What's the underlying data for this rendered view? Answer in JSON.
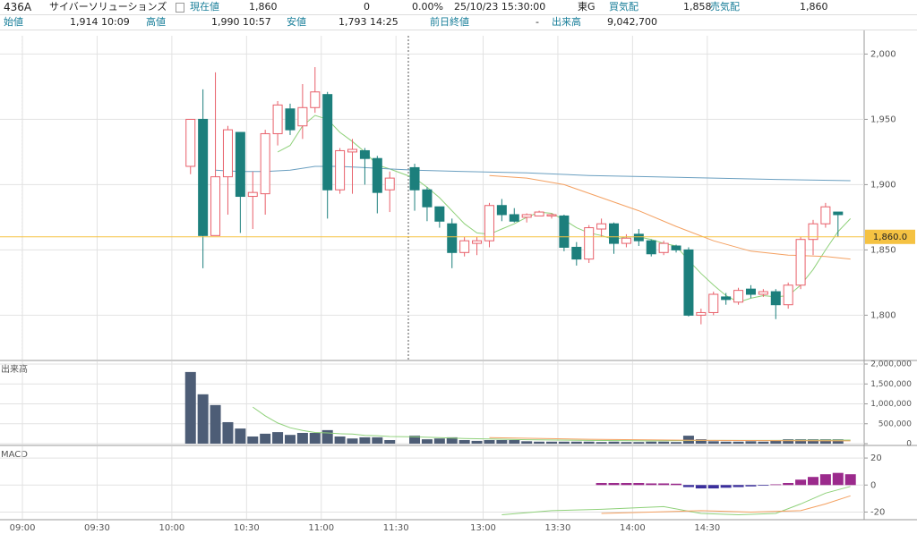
{
  "header": {
    "code": "436A",
    "name": "サイバーソリューションズ",
    "price_label": "現在値",
    "price": "1,860",
    "change": "0",
    "change_pct": "0.00%",
    "datetime": "25/10/23 15:30:00",
    "market": "東G",
    "bid_label": "買気配",
    "bid": "1,858",
    "ask_label": "売気配",
    "ask": "1,860",
    "open_label": "始値",
    "open": "1,914 10:09",
    "high_label": "高値",
    "high": "1,990 10:57",
    "low_label": "安値",
    "low": "1,793 14:25",
    "prev_label": "前日終値",
    "prev": "-",
    "volume_label": "出来高",
    "volume": "9,042,700"
  },
  "chart_data": [
    {
      "type": "candlestick",
      "xlim": [
        -1.8,
        67.6
      ],
      "ylim": [
        1766,
        2014
      ],
      "yticks": [
        {
          "value": 2000,
          "label": "2,000"
        },
        {
          "value": 1950,
          "label": "1,950"
        },
        {
          "value": 1900,
          "label": "1,900"
        },
        {
          "value": 1850,
          "label": "1,850"
        },
        {
          "value": 1800,
          "label": "1,800"
        }
      ],
      "up_color": "#e8606a",
      "down_color": "#1c7f7c",
      "x": [
        13.5,
        14.5,
        15.5,
        16.5,
        17.5,
        18.5,
        19.5,
        20.5,
        21.5,
        22.5,
        23.5,
        24.5,
        25.5,
        26.5,
        27.5,
        28.5,
        29.5,
        31.5,
        32.5,
        33.5,
        34.5,
        35.5,
        36.5,
        37.5,
        38.5,
        39.5,
        40.5,
        41.5,
        42.5,
        43.5,
        44.5,
        45.5,
        46.5,
        47.5,
        48.5,
        49.5,
        50.5,
        51.5,
        52.5,
        53.5,
        54.5,
        55.5,
        56.5,
        57.5,
        58.5,
        59.5,
        60.5,
        61.5,
        62.5,
        63.5,
        64.5,
        65.5
      ],
      "open": [
        1914,
        1950,
        1861,
        1906,
        1940,
        1891,
        1893,
        1939,
        1958,
        1945,
        1959,
        1969,
        1896,
        1925,
        1926,
        1920,
        1896,
        1913,
        1896,
        1883,
        1870,
        1848,
        1855,
        1857,
        1884,
        1877,
        1875,
        1876,
        1876,
        1876,
        1852,
        1843,
        1866,
        1870,
        1855,
        1862,
        1857,
        1848,
        1853,
        1850,
        1800,
        1802,
        1814,
        1810,
        1820,
        1816,
        1818,
        1808,
        1823,
        1858,
        1870,
        1879
      ],
      "high": [
        1950,
        1973,
        1986,
        1945,
        1940,
        1910,
        1942,
        1964,
        1962,
        1977,
        1990,
        1971,
        1928,
        1935,
        1928,
        1922,
        1910,
        1916,
        1898,
        1883,
        1874,
        1860,
        1860,
        1886,
        1889,
        1882,
        1878,
        1880,
        1878,
        1877,
        1856,
        1869,
        1874,
        1871,
        1862,
        1866,
        1858,
        1857,
        1854,
        1852,
        1805,
        1818,
        1817,
        1821,
        1823,
        1820,
        1820,
        1825,
        1860,
        1873,
        1886,
        1879
      ],
      "low": [
        1908,
        1836,
        1861,
        1877,
        1863,
        1866,
        1877,
        1930,
        1938,
        1935,
        1955,
        1874,
        1893,
        1893,
        1900,
        1878,
        1879,
        1880,
        1872,
        1867,
        1836,
        1845,
        1846,
        1852,
        1872,
        1871,
        1871,
        1876,
        1874,
        1849,
        1838,
        1840,
        1860,
        1847,
        1852,
        1853,
        1845,
        1846,
        1848,
        1799,
        1793,
        1800,
        1808,
        1808,
        1813,
        1814,
        1797,
        1805,
        1820,
        1846,
        1867,
        1860
      ],
      "close": [
        1950,
        1861,
        1906,
        1942,
        1891,
        1894,
        1939,
        1961,
        1942,
        1959,
        1971,
        1896,
        1926,
        1927,
        1920,
        1894,
        1905,
        1896,
        1883,
        1872,
        1848,
        1857,
        1857,
        1884,
        1877,
        1872,
        1877,
        1879,
        1877,
        1852,
        1843,
        1867,
        1870,
        1855,
        1859,
        1857,
        1847,
        1855,
        1850,
        1800,
        1802,
        1816,
        1812,
        1819,
        1816,
        1818,
        1808,
        1823,
        1858,
        1870,
        1883,
        1877
      ],
      "lines": [
        {
          "color": "#8fd17a",
          "x": [
            20.5,
            21.5,
            22.5,
            23.5,
            24.5,
            25.5,
            26.5,
            27.5,
            28.5,
            29.5,
            31.5,
            32.5,
            33.5,
            34.5,
            35.5,
            36.5,
            37.5,
            38.5,
            39.5,
            40.5,
            41.5,
            42.5,
            43.5,
            44.5,
            45.5,
            46.5,
            47.5,
            48.5,
            49.5,
            50.5,
            51.5,
            52.5,
            53.5,
            54.5,
            55.5,
            56.5,
            57.5,
            58.5,
            59.5,
            60.5,
            61.5,
            62.5,
            63.5,
            64.5,
            65.5,
            66.5
          ],
          "values": [
            1925,
            1930,
            1945,
            1953,
            1950,
            1940,
            1933,
            1925,
            1915,
            1912,
            1905,
            1898,
            1890,
            1880,
            1870,
            1863,
            1862,
            1866,
            1870,
            1875,
            1879,
            1878,
            1873,
            1867,
            1863,
            1861,
            1858,
            1860,
            1860,
            1858,
            1855,
            1853,
            1842,
            1832,
            1823,
            1815,
            1810,
            1813,
            1815,
            1814,
            1815,
            1823,
            1835,
            1850,
            1864,
            1874
          ]
        },
        {
          "color": "#f4a060",
          "x": [
            37.5,
            40.5,
            43.5,
            46.5,
            49.5,
            52.5,
            55.5,
            58.5,
            61.5,
            64.5,
            66.5
          ],
          "values": [
            1907,
            1905,
            1900,
            1890,
            1880,
            1868,
            1857,
            1849,
            1846,
            1845,
            1843
          ]
        },
        {
          "color": "#6a9fc0",
          "x": [
            15.5,
            17.5,
            19.5,
            21.5,
            23.5,
            25.5,
            27.5,
            29.5,
            31.5,
            35.5,
            40.5,
            45.5,
            50.5,
            55.5,
            60.5,
            66.5
          ],
          "values": [
            1911,
            1910,
            1910,
            1911,
            1914,
            1914,
            1913,
            1912,
            1911,
            1910,
            1909,
            1907,
            1906,
            1905,
            1904,
            1903
          ]
        }
      ],
      "price_line": {
        "value": 1860,
        "label": "1,860.0",
        "color": "#f5c242"
      }
    },
    {
      "type": "bar",
      "label": "出来高",
      "xlim": [
        -1.8,
        67.6
      ],
      "ylim": [
        0,
        2000000
      ],
      "yticks": [
        {
          "value": 2000000,
          "label": "2,000,000"
        },
        {
          "value": 1500000,
          "label": "1,500,000"
        },
        {
          "value": 1000000,
          "label": "1,000,000"
        },
        {
          "value": 500000,
          "label": "500,000"
        },
        0
      ],
      "color": "#4d5d76",
      "x": [
        13.5,
        14.5,
        15.5,
        16.5,
        17.5,
        18.5,
        19.5,
        20.5,
        21.5,
        22.5,
        23.5,
        24.5,
        25.5,
        26.5,
        27.5,
        28.5,
        29.5,
        31.5,
        32.5,
        33.5,
        34.5,
        35.5,
        36.5,
        37.5,
        38.5,
        39.5,
        40.5,
        41.5,
        42.5,
        43.5,
        44.5,
        45.5,
        46.5,
        47.5,
        48.5,
        49.5,
        50.5,
        51.5,
        52.5,
        53.5,
        54.5,
        55.5,
        56.5,
        57.5,
        58.5,
        59.5,
        60.5,
        61.5,
        62.5,
        63.5,
        64.5,
        65.5
      ],
      "values": [
        1800000,
        1240000,
        970000,
        540000,
        380000,
        180000,
        250000,
        290000,
        220000,
        270000,
        270000,
        340000,
        180000,
        130000,
        160000,
        160000,
        90000,
        200000,
        110000,
        130000,
        160000,
        90000,
        70000,
        90000,
        90000,
        90000,
        60000,
        50000,
        50000,
        50000,
        50000,
        50000,
        40000,
        50000,
        40000,
        40000,
        50000,
        50000,
        40000,
        200000,
        110000,
        60000,
        50000,
        50000,
        60000,
        50000,
        90000,
        110000,
        110000,
        110000,
        110000,
        110000
      ],
      "lines": [
        {
          "color": "#8fd17a",
          "x": [
            18.5,
            19.5,
            20.5,
            21.5,
            22.5,
            23.5,
            24.5,
            25.5,
            26.5,
            27.5,
            28.5,
            29.5,
            31.5,
            33.5,
            35.5,
            37.5,
            40.5,
            45.5,
            50.5,
            55.5,
            60.5,
            66.5
          ],
          "values": [
            920000,
            700000,
            520000,
            400000,
            330000,
            280000,
            270000,
            250000,
            240000,
            210000,
            200000,
            180000,
            170000,
            150000,
            130000,
            120000,
            100000,
            80000,
            70000,
            80000,
            80000,
            90000
          ]
        },
        {
          "color": "#f4a060",
          "x": [
            37.5,
            45.5,
            55.5,
            66.5
          ],
          "values": [
            150000,
            110000,
            80000,
            70000
          ]
        }
      ]
    },
    {
      "type": "macd",
      "label": "MACD",
      "xlim": [
        -1.8,
        67.6
      ],
      "ylim": [
        -25,
        28
      ],
      "yticks": [
        20,
        0,
        -20
      ],
      "xticks": [
        {
          "value": 0,
          "label": "09:00"
        },
        {
          "value": 6,
          "label": "09:30"
        },
        {
          "value": 12,
          "label": "10:00"
        },
        {
          "value": 18,
          "label": "10:30"
        },
        {
          "value": 24,
          "label": "11:00"
        },
        {
          "value": 30,
          "label": "11:30"
        },
        {
          "value": 37,
          "label": "13:00"
        },
        {
          "value": 43,
          "label": "13:30"
        },
        {
          "value": 49,
          "label": "14:00"
        },
        {
          "value": 55,
          "label": "14:30"
        }
      ],
      "pos_color": "#9b2a8c",
      "neg_color": "#3b2f9c",
      "x": [
        46.5,
        47.5,
        48.5,
        49.5,
        50.5,
        51.5,
        52.5,
        53.5,
        54.5,
        55.5,
        56.5,
        57.5,
        58.5,
        59.5,
        60.5,
        61.5,
        62.5,
        63.5,
        64.5,
        65.5,
        66.5
      ],
      "values": [
        1.5,
        1.5,
        1.5,
        1.5,
        1.2,
        1.2,
        1.0,
        -1.5,
        -2.5,
        -2.5,
        -2.0,
        -1.5,
        -1.0,
        -0.5,
        0.5,
        1.5,
        4,
        6,
        8,
        9,
        8
      ],
      "lines": [
        {
          "color": "#8fd17a",
          "x": [
            38.5,
            42.5,
            46.5,
            51.5,
            54.5,
            57.5,
            60.5,
            62.5,
            64.5,
            66.5
          ],
          "values": [
            -22,
            -19,
            -18,
            -16,
            -21,
            -22,
            -21,
            -14,
            -6,
            -1
          ]
        },
        {
          "color": "#f4a060",
          "x": [
            46.5,
            50.5,
            54.5,
            58.5,
            62.5,
            64.5,
            66.5
          ],
          "values": [
            -21,
            -20,
            -19,
            -20,
            -19,
            -14,
            -8
          ]
        }
      ]
    }
  ]
}
